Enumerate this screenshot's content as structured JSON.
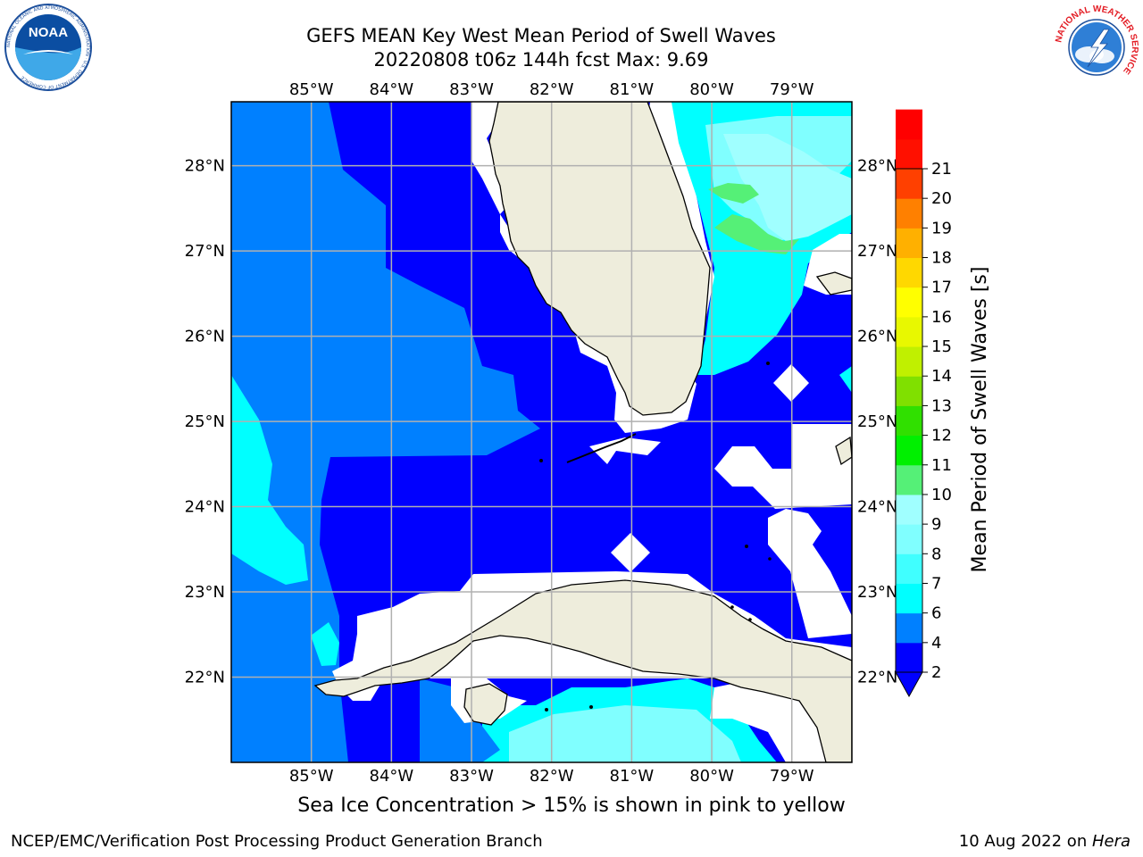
{
  "header": {
    "title_line1": "GEFS MEAN Key West Mean Period of Swell Waves",
    "title_line2": "20220808 t06z 144h fcst   Max: 9.69"
  },
  "logos": {
    "left": "NOAA",
    "left_ring_text": "NATIONAL OCEANIC AND ATMOSPHERIC ADMINISTRATION · U.S. DEPARTMENT OF COMMERCE",
    "right_ring_text": "NATIONAL WEATHER SERVICE"
  },
  "map": {
    "lon_labels": [
      "85°W",
      "84°W",
      "83°W",
      "82°W",
      "81°W",
      "80°W",
      "79°W"
    ],
    "lat_labels": [
      "28°N",
      "27°N",
      "26°N",
      "25°N",
      "24°N",
      "23°N",
      "22°N"
    ],
    "lon_values": [
      -85,
      -84,
      -83,
      -82,
      -81,
      -80,
      -79
    ],
    "lat_values": [
      28,
      27,
      26,
      25,
      24,
      23,
      22
    ],
    "extent": {
      "lon_min": -86.0,
      "lon_max": -78.25,
      "lat_min": 21.0,
      "lat_max": 28.75
    },
    "colors": {
      "land": "#eeeddc",
      "coast": "#000000",
      "grid": "#b0b0b0",
      "nodata": "#ffffff"
    }
  },
  "colorbar": {
    "label": "Mean Period of Swell Waves [s]",
    "ticks": [
      "2",
      "4",
      "6",
      "7",
      "8",
      "9",
      "10",
      "11",
      "12",
      "13",
      "14",
      "15",
      "16",
      "17",
      "18",
      "19",
      "20",
      "21"
    ],
    "colors": [
      "#0000ff",
      "#0080ff",
      "#00ffff",
      "#40ffff",
      "#80ffff",
      "#a0ffff",
      "#55f077",
      "#00f000",
      "#30e000",
      "#80e000",
      "#c0f000",
      "#e8f800",
      "#ffff00",
      "#ffd800",
      "#ffb000",
      "#ff8000",
      "#ff4000",
      "#ff1000",
      "#ff0000"
    ],
    "extend_color": "#0000ff"
  },
  "caption": "Sea Ice Concentration > 15% is shown in pink to yellow",
  "footer": {
    "left": "NCEP/EMC/Verification Post Processing Product Generation Branch",
    "right_date": "10 Aug 2022 on ",
    "right_host": "Hera"
  }
}
